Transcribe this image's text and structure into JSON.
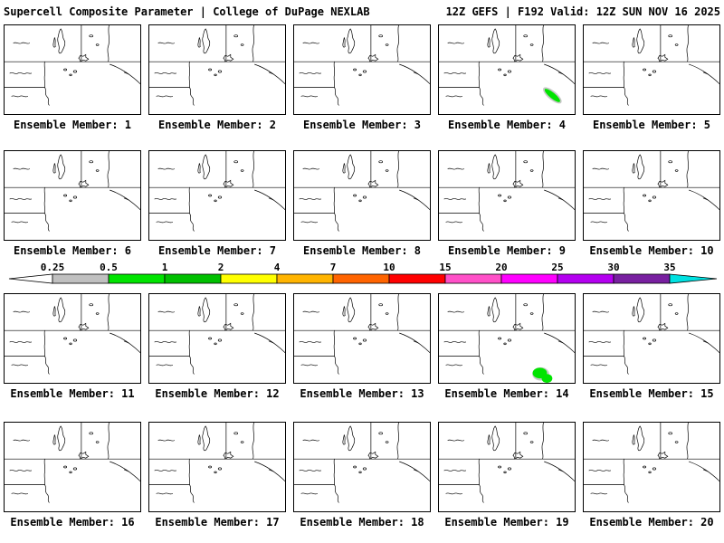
{
  "header": {
    "left": "Supercell Composite Parameter | College of DuPage NEXLAB",
    "right": "12Z GEFS | F192 Valid: 12Z SUN NOV 16 2025"
  },
  "members": [
    {
      "label": "Ensemble Member: 1",
      "scp_signal": null
    },
    {
      "label": "Ensemble Member: 2",
      "scp_signal": null
    },
    {
      "label": "Ensemble Member: 3",
      "scp_signal": null
    },
    {
      "label": "Ensemble Member: 4",
      "scp_signal": "streak"
    },
    {
      "label": "Ensemble Member: 5",
      "scp_signal": null
    },
    {
      "label": "Ensemble Member: 6",
      "scp_signal": null
    },
    {
      "label": "Ensemble Member: 7",
      "scp_signal": null
    },
    {
      "label": "Ensemble Member: 8",
      "scp_signal": null
    },
    {
      "label": "Ensemble Member: 9",
      "scp_signal": null
    },
    {
      "label": "Ensemble Member: 10",
      "scp_signal": null
    },
    {
      "label": "Ensemble Member: 11",
      "scp_signal": null
    },
    {
      "label": "Ensemble Member: 12",
      "scp_signal": null
    },
    {
      "label": "Ensemble Member: 13",
      "scp_signal": null
    },
    {
      "label": "Ensemble Member: 14",
      "scp_signal": "blob"
    },
    {
      "label": "Ensemble Member: 15",
      "scp_signal": null
    },
    {
      "label": "Ensemble Member: 16",
      "scp_signal": null
    },
    {
      "label": "Ensemble Member: 17",
      "scp_signal": null
    },
    {
      "label": "Ensemble Member: 18",
      "scp_signal": null
    },
    {
      "label": "Ensemble Member: 19",
      "scp_signal": null
    },
    {
      "label": "Ensemble Member: 20",
      "scp_signal": null
    }
  ],
  "signal": {
    "color": "#00e400",
    "fringe_color": "#c8c8c8"
  },
  "colorbar": {
    "ticks": [
      "0.25",
      "0.5",
      "1",
      "2",
      "4",
      "7",
      "10",
      "15",
      "20",
      "25",
      "30",
      "35"
    ],
    "below_min_color": "#ffffff",
    "segment_colors": [
      "#c0c0c0",
      "#00e400",
      "#00c000",
      "#ffff00",
      "#ffb400",
      "#ff6400",
      "#ff0000",
      "#ff50c8",
      "#ff00ff",
      "#b400f0",
      "#7820a0"
    ],
    "above_max_color": "#00e1e1"
  }
}
